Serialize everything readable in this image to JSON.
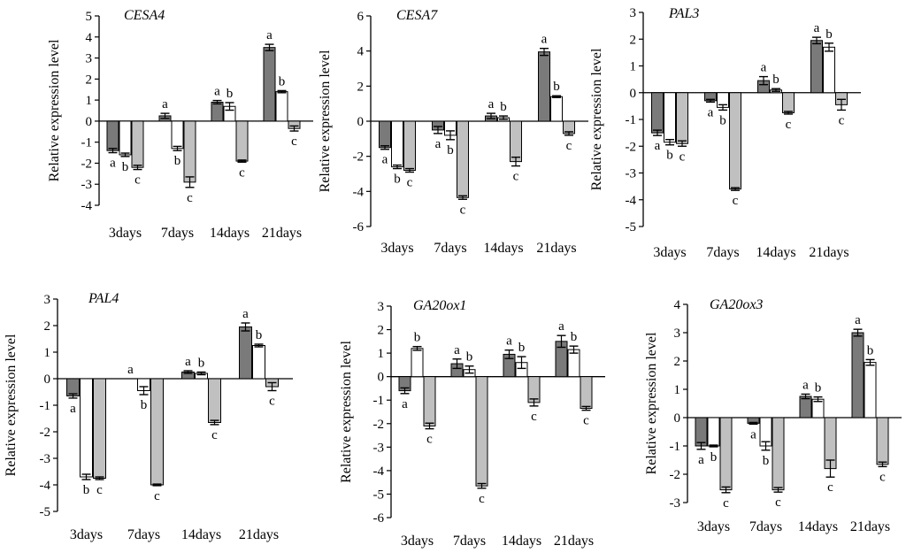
{
  "chart_data": [
    {
      "type": "bar",
      "title": "CESA4",
      "ylabel": "Relative expression level",
      "categories": [
        "3days",
        "7days",
        "14days",
        "21days"
      ],
      "ylim": [
        -4,
        5
      ],
      "yticks": [
        5,
        4,
        3,
        2,
        1,
        0,
        -1,
        -2,
        -3,
        -4
      ],
      "series": [
        {
          "name": "series-dark",
          "values": [
            -1.4,
            0.25,
            0.9,
            3.5
          ],
          "errors": [
            0.1,
            0.12,
            0.08,
            0.15
          ],
          "letters": [
            "a",
            "a",
            "a",
            "a"
          ]
        },
        {
          "name": "series-white",
          "values": [
            -1.6,
            -1.3,
            0.7,
            1.4
          ],
          "errors": [
            0.08,
            0.1,
            0.18,
            0.05
          ],
          "letters": [
            "b",
            "b",
            "b",
            "b"
          ]
        },
        {
          "name": "series-light",
          "values": [
            -2.2,
            -2.9,
            -1.9,
            -0.35
          ],
          "errors": [
            0.1,
            0.25,
            0.05,
            0.12
          ],
          "letters": [
            "c",
            "c",
            "c",
            "c"
          ]
        }
      ]
    },
    {
      "type": "bar",
      "title": "CESA7",
      "ylabel": "Relative expression level",
      "categories": [
        "3days",
        "7days",
        "14days",
        "21days"
      ],
      "ylim": [
        -6,
        6
      ],
      "yticks": [
        6,
        4,
        2,
        0,
        -2,
        -4,
        -6
      ],
      "series": [
        {
          "name": "series-dark",
          "values": [
            -1.5,
            -0.5,
            0.3,
            3.95
          ],
          "errors": [
            0.1,
            0.2,
            0.15,
            0.2
          ],
          "letters": [
            "a",
            "a",
            "a",
            "a"
          ]
        },
        {
          "name": "series-white",
          "values": [
            -2.6,
            -0.8,
            0.2,
            1.4
          ],
          "errors": [
            0.1,
            0.25,
            0.1,
            0.05
          ],
          "letters": [
            "b",
            "b",
            "b",
            "b"
          ]
        },
        {
          "name": "series-light",
          "values": [
            -2.8,
            -4.35,
            -2.3,
            -0.7
          ],
          "errors": [
            0.1,
            0.1,
            0.25,
            0.1
          ],
          "letters": [
            "c",
            "c",
            "c",
            "c"
          ]
        }
      ]
    },
    {
      "type": "bar",
      "title": "PAL3",
      "ylabel": "Relative expression level",
      "categories": [
        "3days",
        "7days",
        "14days",
        "21days"
      ],
      "ylim": [
        -5,
        3
      ],
      "yticks": [
        3,
        2,
        1,
        0,
        -1,
        -2,
        -3,
        -4,
        -5
      ],
      "series": [
        {
          "name": "series-dark",
          "values": [
            -1.5,
            -0.3,
            0.45,
            1.95
          ],
          "errors": [
            0.1,
            0.05,
            0.15,
            0.12
          ],
          "letters": [
            "a",
            "a",
            "a",
            "a"
          ]
        },
        {
          "name": "series-white",
          "values": [
            -1.85,
            -0.55,
            0.1,
            1.7
          ],
          "errors": [
            0.1,
            0.1,
            0.05,
            0.15
          ],
          "letters": [
            "b",
            "b",
            "b",
            "b"
          ]
        },
        {
          "name": "series-light",
          "values": [
            -1.9,
            -3.6,
            -0.75,
            -0.45
          ],
          "errors": [
            0.1,
            0.05,
            0.05,
            0.2
          ],
          "letters": [
            "c",
            "c",
            "c",
            "c"
          ]
        }
      ]
    },
    {
      "type": "bar",
      "title": "PAL4",
      "ylabel": "Relative expression level",
      "categories": [
        "3days",
        "7days",
        "14days",
        "21days"
      ],
      "ylim": [
        -5,
        3
      ],
      "yticks": [
        3,
        2,
        1,
        0,
        -1,
        -2,
        -3,
        -4,
        -5
      ],
      "series": [
        {
          "name": "series-dark",
          "values": [
            -0.65,
            0.0,
            0.25,
            1.95
          ],
          "errors": [
            0.08,
            0.0,
            0.05,
            0.15
          ],
          "letters": [
            "a",
            "a",
            "a",
            "a"
          ]
        },
        {
          "name": "series-white",
          "values": [
            -3.7,
            -0.45,
            0.2,
            1.25
          ],
          "errors": [
            0.1,
            0.15,
            0.05,
            0.05
          ],
          "letters": [
            "b",
            "b",
            "b",
            "b"
          ]
        },
        {
          "name": "series-light",
          "values": [
            -3.75,
            -4.0,
            -1.65,
            -0.3
          ],
          "errors": [
            0.05,
            0.03,
            0.08,
            0.15
          ],
          "letters": [
            "c",
            "c",
            "c",
            "c"
          ]
        }
      ]
    },
    {
      "type": "bar",
      "title": "GA20ox1",
      "ylabel": "Relative expression level",
      "categories": [
        "3days",
        "7days",
        "14days",
        "21days"
      ],
      "ylim": [
        -6,
        3
      ],
      "yticks": [
        3,
        2,
        1,
        0,
        -1,
        -2,
        -3,
        -4,
        -5,
        -6
      ],
      "series": [
        {
          "name": "series-dark",
          "values": [
            -0.6,
            0.55,
            0.95,
            1.5
          ],
          "errors": [
            0.12,
            0.2,
            0.18,
            0.25
          ],
          "letters": [
            "a",
            "a",
            "a",
            "a"
          ]
        },
        {
          "name": "series-white",
          "values": [
            1.2,
            0.3,
            0.6,
            1.15
          ],
          "errors": [
            0.08,
            0.15,
            0.25,
            0.15
          ],
          "letters": [
            "b",
            "b",
            "b",
            "b"
          ]
        },
        {
          "name": "series-light",
          "values": [
            -2.1,
            -4.65,
            -1.1,
            -1.35
          ],
          "errors": [
            0.12,
            0.1,
            0.15,
            0.08
          ],
          "letters": [
            "c",
            "c",
            "c",
            "c"
          ]
        }
      ]
    },
    {
      "type": "bar",
      "title": "GA20ox3",
      "ylabel": "Relative expression level",
      "categories": [
        "3days",
        "7days",
        "14days",
        "21days"
      ],
      "ylim": [
        -3,
        4
      ],
      "yticks": [
        4,
        3,
        2,
        1,
        0,
        -1,
        -2,
        -3
      ],
      "series": [
        {
          "name": "series-dark",
          "values": [
            -1.0,
            -0.2,
            0.75,
            3.0
          ],
          "errors": [
            0.12,
            0.03,
            0.08,
            0.12
          ],
          "letters": [
            "a",
            "a",
            "a",
            "a"
          ]
        },
        {
          "name": "series-white",
          "values": [
            -1.0,
            -1.0,
            0.65,
            1.95
          ],
          "errors": [
            0.03,
            0.15,
            0.08,
            0.1
          ],
          "letters": [
            "b",
            "b",
            "b",
            "b"
          ]
        },
        {
          "name": "series-light",
          "values": [
            -2.55,
            -2.55,
            -1.8,
            -1.65
          ],
          "errors": [
            0.1,
            0.08,
            0.3,
            0.08
          ],
          "letters": [
            "c",
            "c",
            "c",
            "c"
          ]
        }
      ]
    }
  ],
  "colors": {
    "series-dark": "#7a7a7a",
    "series-white": "#ffffff",
    "series-light": "#c0c0c0",
    "axis": "#000000"
  }
}
